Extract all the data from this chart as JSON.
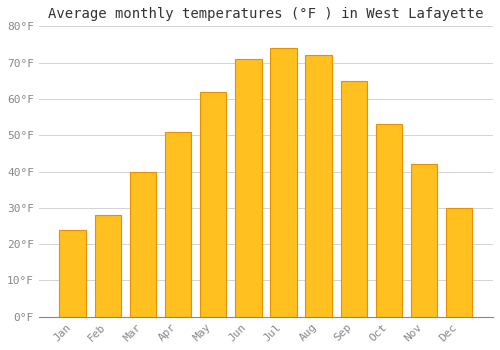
{
  "title": "Average monthly temperatures (°F ) in West Lafayette",
  "months": [
    "Jan",
    "Feb",
    "Mar",
    "Apr",
    "May",
    "Jun",
    "Jul",
    "Aug",
    "Sep",
    "Oct",
    "Nov",
    "Dec"
  ],
  "values": [
    24,
    28,
    40,
    51,
    62,
    71,
    74,
    72,
    65,
    53,
    42,
    30
  ],
  "bar_color": "#FFC020",
  "bar_edge_color": "#E89000",
  "background_color": "#FFFFFF",
  "plot_bg_color": "#FFFFFF",
  "grid_color": "#CCCCCC",
  "ylim": [
    0,
    80
  ],
  "yticks": [
    0,
    10,
    20,
    30,
    40,
    50,
    60,
    70,
    80
  ],
  "ytick_labels": [
    "0°F",
    "10°F",
    "20°F",
    "30°F",
    "40°F",
    "50°F",
    "60°F",
    "70°F",
    "80°F"
  ],
  "title_fontsize": 10,
  "tick_fontsize": 8,
  "font_family": "monospace",
  "tick_color": "#888888",
  "title_color": "#333333"
}
